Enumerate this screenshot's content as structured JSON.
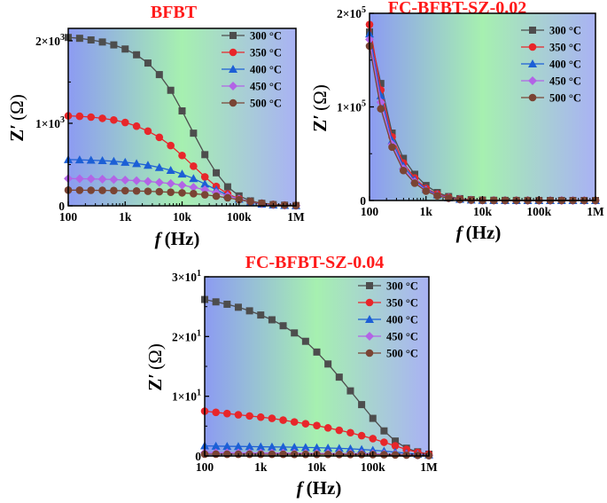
{
  "legend_labels": [
    "300 °C",
    "350 °C",
    "400 °C",
    "450 °C",
    "500 °C"
  ],
  "colors": {
    "s300": "#4d4d4d",
    "s350": "#e8262a",
    "s400": "#1c5fd6",
    "s450": "#b264e6",
    "s500": "#7a4434",
    "title": "#ff1a1a",
    "bg_left": "#8c9bf2",
    "bg_mid": "#a6f0b0",
    "bg_right": "#a9b2f4"
  },
  "markers": [
    "square",
    "circle",
    "triangle",
    "diamond",
    "circle"
  ],
  "axis_labels": {
    "x_italic": "f",
    "x_rest": "(Hz)",
    "y_main": "Z′",
    "y_unit": "(Ω)"
  },
  "chart_data": [
    {
      "type": "line",
      "title": "BFBT",
      "xscale": "log",
      "xlim": [
        100,
        1000000
      ],
      "ylim": [
        0,
        2150
      ],
      "xticks": [
        {
          "v": 100,
          "label": "100"
        },
        {
          "v": 1000,
          "label": "1k"
        },
        {
          "v": 10000,
          "label": "10k"
        },
        {
          "v": 100000,
          "label": "100k"
        },
        {
          "v": 1000000,
          "label": "1M"
        }
      ],
      "yticks": [
        {
          "v": 0,
          "base": "0",
          "exp": ""
        },
        {
          "v": 1000,
          "base": "1×10",
          "exp": "3"
        },
        {
          "v": 2000,
          "base": "2×10",
          "exp": "3"
        }
      ],
      "x": [
        100,
        158.5,
        251.2,
        398.1,
        631,
        1000,
        1585,
        2512,
        3981,
        6310,
        10000,
        15850,
        25120,
        39810,
        63100,
        100000,
        158500,
        251200,
        398100,
        631000,
        1000000
      ],
      "series": [
        {
          "name": "300 °C",
          "values": [
            2040,
            2030,
            2010,
            1985,
            1950,
            1900,
            1830,
            1730,
            1590,
            1400,
            1150,
            880,
            620,
            400,
            230,
            120,
            60,
            30,
            15,
            8,
            4
          ]
        },
        {
          "name": "350 °C",
          "values": [
            1090,
            1085,
            1075,
            1060,
            1040,
            1010,
            965,
            905,
            830,
            730,
            610,
            480,
            350,
            235,
            145,
            85,
            45,
            22,
            11,
            6,
            3
          ]
        },
        {
          "name": "400 °C",
          "values": [
            560,
            558,
            553,
            548,
            540,
            528,
            512,
            492,
            465,
            430,
            385,
            330,
            265,
            195,
            130,
            80,
            45,
            22,
            11,
            6,
            3
          ]
        },
        {
          "name": "450 °C",
          "values": [
            330,
            328,
            326,
            323,
            318,
            312,
            305,
            296,
            284,
            270,
            250,
            225,
            195,
            160,
            120,
            82,
            50,
            28,
            14,
            7,
            3
          ]
        },
        {
          "name": "500 °C",
          "values": [
            190,
            189,
            188,
            187,
            185,
            183,
            180,
            176,
            171,
            165,
            157,
            147,
            134,
            117,
            97,
            74,
            52,
            32,
            17,
            8,
            3
          ]
        }
      ]
    },
    {
      "type": "line",
      "title": "FC-BFBT-SZ-0.02",
      "xscale": "log",
      "xlim": [
        100,
        1000000
      ],
      "ylim": [
        0,
        200000
      ],
      "xticks": [
        {
          "v": 100,
          "label": "100"
        },
        {
          "v": 1000,
          "label": "1k"
        },
        {
          "v": 10000,
          "label": "10k"
        },
        {
          "v": 100000,
          "label": "100k"
        },
        {
          "v": 1000000,
          "label": "1M"
        }
      ],
      "yticks": [
        {
          "v": 0,
          "base": "0",
          "exp": ""
        },
        {
          "v": 100000,
          "base": "1×10",
          "exp": "5"
        },
        {
          "v": 200000,
          "base": "2×10",
          "exp": "5"
        }
      ],
      "x": [
        100,
        158.5,
        251.2,
        398.1,
        631,
        1000,
        1585,
        2512,
        3981,
        6310,
        10000,
        15850,
        25120,
        39810,
        63100,
        100000,
        158500,
        251200,
        398100,
        631000,
        1000000
      ],
      "series": [
        {
          "name": "300 °C",
          "values": [
            180000,
            125000,
            72000,
            45000,
            28000,
            16000,
            8500,
            4200,
            2000,
            900,
            400,
            200,
            100,
            50,
            30,
            20,
            12,
            8,
            5,
            3,
            2
          ]
        },
        {
          "name": "350 °C",
          "values": [
            188000,
            118000,
            68000,
            40000,
            24000,
            13000,
            6800,
            3300,
            1500,
            700,
            300,
            150,
            80,
            40,
            25,
            15,
            10,
            6,
            4,
            3,
            2
          ]
        },
        {
          "name": "400 °C",
          "values": [
            178000,
            112000,
            64000,
            37000,
            22000,
            12000,
            6000,
            2900,
            1300,
            600,
            260,
            120,
            60,
            35,
            20,
            12,
            8,
            5,
            3,
            2,
            1
          ]
        },
        {
          "name": "450 °C",
          "values": [
            172000,
            105000,
            60000,
            34000,
            20000,
            10800,
            5400,
            2600,
            1150,
            500,
            220,
            100,
            50,
            30,
            18,
            10,
            7,
            4,
            3,
            2,
            1
          ]
        },
        {
          "name": "500 °C",
          "values": [
            165000,
            98000,
            57000,
            32000,
            18500,
            10000,
            5000,
            2400,
            1050,
            450,
            200,
            90,
            45,
            25,
            15,
            9,
            6,
            4,
            3,
            2,
            1
          ]
        }
      ]
    },
    {
      "type": "line",
      "title": "FC-BFBT-SZ-0.04",
      "xscale": "log",
      "xlim": [
        100,
        1000000
      ],
      "ylim": [
        0,
        30
      ],
      "xticks": [
        {
          "v": 100,
          "label": "100"
        },
        {
          "v": 1000,
          "label": "1k"
        },
        {
          "v": 10000,
          "label": "10k"
        },
        {
          "v": 100000,
          "label": "100k"
        },
        {
          "v": 1000000,
          "label": "1M"
        }
      ],
      "yticks": [
        {
          "v": 0,
          "base": "0",
          "exp": ""
        },
        {
          "v": 10,
          "base": "1×10",
          "exp": "1"
        },
        {
          "v": 20,
          "base": "2×10",
          "exp": "1"
        },
        {
          "v": 30,
          "base": "3×10",
          "exp": "1"
        }
      ],
      "x": [
        100,
        158.5,
        251.2,
        398.1,
        631,
        1000,
        1585,
        2512,
        3981,
        6310,
        10000,
        15850,
        25120,
        39810,
        63100,
        100000,
        158500,
        251200,
        398100,
        631000,
        1000000
      ],
      "series": [
        {
          "name": "300 °C",
          "values": [
            26.2,
            25.8,
            25.4,
            24.9,
            24.3,
            23.6,
            22.8,
            21.8,
            20.6,
            19.2,
            17.4,
            15.4,
            13.2,
            10.9,
            8.6,
            6.3,
            4.2,
            2.5,
            1.3,
            0.7,
            0.3
          ]
        },
        {
          "name": "350 °C",
          "values": [
            7.5,
            7.3,
            7.1,
            6.9,
            6.7,
            6.5,
            6.3,
            6.0,
            5.7,
            5.4,
            5.1,
            4.7,
            4.3,
            3.9,
            3.4,
            2.9,
            2.3,
            1.7,
            1.1,
            0.6,
            0.3
          ]
        },
        {
          "name": "400 °C",
          "values": [
            1.7,
            1.65,
            1.62,
            1.6,
            1.58,
            1.55,
            1.52,
            1.5,
            1.47,
            1.43,
            1.39,
            1.34,
            1.28,
            1.2,
            1.1,
            0.97,
            0.82,
            0.64,
            0.46,
            0.3,
            0.18
          ]
        },
        {
          "name": "450 °C",
          "values": [
            0.55,
            0.54,
            0.53,
            0.52,
            0.51,
            0.5,
            0.49,
            0.48,
            0.47,
            0.46,
            0.45,
            0.44,
            0.43,
            0.42,
            0.4,
            0.38,
            0.35,
            0.3,
            0.24,
            0.17,
            0.1
          ]
        },
        {
          "name": "500 °C",
          "values": [
            0.3,
            0.3,
            0.29,
            0.29,
            0.29,
            0.28,
            0.28,
            0.28,
            0.27,
            0.27,
            0.26,
            0.26,
            0.25,
            0.25,
            0.24,
            0.23,
            0.21,
            0.18,
            0.15,
            0.11,
            0.07
          ]
        }
      ]
    }
  ]
}
